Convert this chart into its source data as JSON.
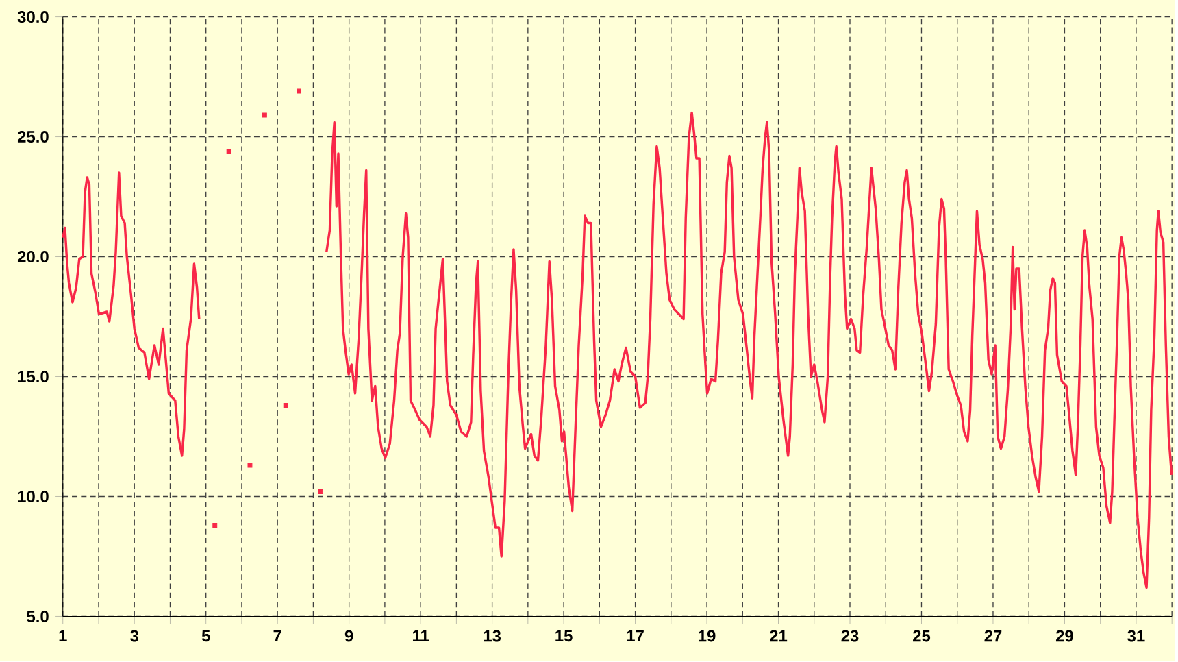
{
  "chart_data": {
    "type": "line",
    "xlim": [
      1,
      32
    ],
    "ylim": [
      5,
      30
    ],
    "xticks": [
      1,
      {
        "value": 2,
        "label": null
      },
      3,
      {
        "value": 4,
        "label": null
      },
      5,
      {
        "value": 6,
        "label": null
      },
      7,
      {
        "value": 8,
        "label": null
      },
      9,
      {
        "value": 10,
        "label": null
      },
      11,
      {
        "value": 12,
        "label": null
      },
      13,
      {
        "value": 14,
        "label": null
      },
      15,
      {
        "value": 16,
        "label": null
      },
      17,
      {
        "value": 18,
        "label": null
      },
      19,
      {
        "value": 20,
        "label": null
      },
      21,
      {
        "value": 22,
        "label": null
      },
      23,
      {
        "value": 24,
        "label": null
      },
      25,
      {
        "value": 26,
        "label": null
      },
      27,
      {
        "value": 28,
        "label": null
      },
      29,
      {
        "value": 30,
        "label": null
      },
      31,
      {
        "value": 32,
        "label": null
      }
    ],
    "yticks": [
      {
        "value": 5,
        "label": "5.0"
      },
      {
        "value": 10,
        "label": "10.0"
      },
      {
        "value": 15,
        "label": "15.0"
      },
      {
        "value": 20,
        "label": "20.0"
      },
      {
        "value": 25,
        "label": "25.0"
      },
      {
        "value": 30,
        "label": "30.0"
      }
    ],
    "grid": true,
    "series": [
      {
        "color": "#f82848",
        "x": [
          1.0,
          1.06,
          1.12,
          1.17,
          1.27,
          1.37,
          1.46,
          1.56,
          1.62,
          1.68,
          1.74,
          1.8,
          1.91,
          2.01,
          2.23,
          2.3,
          2.42,
          2.48,
          2.57,
          2.63,
          2.73,
          2.79,
          2.9,
          3.0,
          3.12,
          3.28,
          3.41,
          3.56,
          3.68,
          3.8,
          3.89,
          3.96,
          4.14,
          4.23,
          4.33,
          4.39,
          4.46,
          4.58,
          4.67,
          4.75,
          4.81,
          5.0,
          8.3,
          8.37,
          8.46,
          8.53,
          8.59,
          8.65,
          8.7,
          8.77,
          8.83,
          8.9,
          8.99,
          9.07,
          9.17,
          9.27,
          9.36,
          9.42,
          9.48,
          9.54,
          9.64,
          9.73,
          9.81,
          9.91,
          10.01,
          10.14,
          10.26,
          10.35,
          10.42,
          10.5,
          10.59,
          10.65,
          10.72,
          10.85,
          10.97,
          11.17,
          11.27,
          11.36,
          11.42,
          11.53,
          11.62,
          11.68,
          11.74,
          11.83,
          12.0,
          12.13,
          12.29,
          12.41,
          12.47,
          12.55,
          12.6,
          12.68,
          12.77,
          12.9,
          12.99,
          13.09,
          13.19,
          13.26,
          13.35,
          13.45,
          13.53,
          13.6,
          13.67,
          13.76,
          13.86,
          13.92,
          14.09,
          14.18,
          14.28,
          14.37,
          14.5,
          14.6,
          14.67,
          14.76,
          14.88,
          14.95,
          15.01,
          15.14,
          15.24,
          15.33,
          15.42,
          15.53,
          15.59,
          15.68,
          15.76,
          15.85,
          15.91,
          16.04,
          16.17,
          16.29,
          16.42,
          16.53,
          16.62,
          16.74,
          16.87,
          17.0,
          17.13,
          17.28,
          17.35,
          17.42,
          17.51,
          17.6,
          17.68,
          17.77,
          17.87,
          17.96,
          18.09,
          18.22,
          18.35,
          18.41,
          18.5,
          18.58,
          18.64,
          18.71,
          18.79,
          18.88,
          18.96,
          19.01,
          19.12,
          19.24,
          19.31,
          19.4,
          19.5,
          19.56,
          19.63,
          19.69,
          19.76,
          19.88,
          20.01,
          20.12,
          20.21,
          20.27,
          20.33,
          20.4,
          20.5,
          20.56,
          20.63,
          20.68,
          20.74,
          20.81,
          20.91,
          21.01,
          21.14,
          21.27,
          21.32,
          21.4,
          21.46,
          21.53,
          21.59,
          21.65,
          21.74,
          21.83,
          21.91,
          22.0,
          22.09,
          22.22,
          22.29,
          22.38,
          22.45,
          22.5,
          22.58,
          22.62,
          22.68,
          22.77,
          22.86,
          22.92,
          23.03,
          23.13,
          23.19,
          23.28,
          23.37,
          23.47,
          23.54,
          23.6,
          23.67,
          23.72,
          23.81,
          23.88,
          23.99,
          24.08,
          24.18,
          24.27,
          24.35,
          24.44,
          24.53,
          24.59,
          24.65,
          24.73,
          24.82,
          24.91,
          25.01,
          25.12,
          25.21,
          25.29,
          25.4,
          25.49,
          25.56,
          25.63,
          25.68,
          25.76,
          25.88,
          26.0,
          26.1,
          26.19,
          26.29,
          26.36,
          26.42,
          26.49,
          26.55,
          26.62,
          26.71,
          26.78,
          26.87,
          26.96,
          27.06,
          27.13,
          27.22,
          27.32,
          27.41,
          27.49,
          27.55,
          27.6,
          27.65,
          27.73,
          27.81,
          27.9,
          27.99,
          28.09,
          28.19,
          28.28,
          28.37,
          28.45,
          28.54,
          28.6,
          28.67,
          28.73,
          28.79,
          28.92,
          29.05,
          29.14,
          29.22,
          29.31,
          29.37,
          29.44,
          29.5,
          29.56,
          29.63,
          29.69,
          29.78,
          29.88,
          29.97,
          30.08,
          30.17,
          30.27,
          30.33,
          30.4,
          30.46,
          30.53,
          30.59,
          30.65,
          30.72,
          30.78,
          30.85,
          30.94,
          31.04,
          31.13,
          31.21,
          31.29,
          31.36,
          31.42,
          31.51,
          31.58,
          31.62,
          31.68,
          31.76,
          31.83,
          31.91,
          31.99
        ],
        "values": [
          20.8,
          21.2,
          19.7,
          18.9,
          18.1,
          18.7,
          19.9,
          20.0,
          22.7,
          23.3,
          23.0,
          19.3,
          18.5,
          17.6,
          17.7,
          17.3,
          18.8,
          20.2,
          23.5,
          21.7,
          21.4,
          20.0,
          18.5,
          17.0,
          16.2,
          16.0,
          14.9,
          16.3,
          15.5,
          17.0,
          15.5,
          14.3,
          14.0,
          12.5,
          11.7,
          12.8,
          16.1,
          17.4,
          19.7,
          18.7,
          17.4,
          null,
          null,
          20.2,
          21.1,
          24.3,
          25.6,
          22.1,
          24.3,
          20.1,
          17.0,
          16.1,
          15.1,
          15.5,
          14.3,
          16.6,
          19.6,
          21.8,
          23.6,
          17.0,
          14.0,
          14.6,
          12.9,
          12.0,
          11.6,
          12.2,
          14.0,
          16.1,
          16.8,
          20.0,
          21.8,
          20.8,
          14.0,
          13.6,
          13.2,
          12.9,
          12.5,
          13.8,
          17.0,
          18.6,
          19.9,
          17.4,
          14.8,
          13.8,
          13.4,
          12.7,
          12.5,
          13.1,
          15.9,
          18.9,
          19.8,
          14.4,
          11.9,
          10.8,
          9.8,
          8.7,
          8.7,
          7.5,
          9.8,
          15.0,
          18.2,
          20.3,
          18.6,
          14.6,
          12.9,
          12.0,
          12.6,
          11.7,
          11.5,
          13.2,
          16.3,
          19.8,
          18.2,
          14.6,
          13.6,
          12.3,
          12.7,
          10.4,
          9.4,
          12.9,
          16.3,
          19.3,
          21.7,
          21.4,
          21.4,
          16.5,
          14.0,
          12.9,
          13.4,
          14.0,
          15.3,
          14.8,
          15.5,
          16.2,
          15.2,
          15.0,
          13.7,
          13.9,
          15.0,
          17.4,
          22.2,
          24.6,
          23.7,
          21.6,
          19.3,
          18.2,
          17.8,
          17.6,
          17.4,
          21.6,
          25.0,
          26.0,
          25.2,
          24.1,
          24.1,
          17.6,
          15.5,
          14.3,
          14.9,
          14.8,
          16.5,
          19.3,
          20.2,
          23.1,
          24.2,
          23.7,
          20.0,
          18.2,
          17.6,
          16.1,
          14.8,
          14.1,
          16.7,
          18.8,
          21.8,
          23.7,
          25.0,
          25.6,
          24.4,
          19.8,
          17.6,
          15.0,
          13.2,
          11.7,
          12.5,
          15.5,
          19.3,
          21.6,
          23.7,
          22.7,
          21.9,
          17.6,
          15.0,
          15.5,
          14.8,
          13.6,
          13.1,
          15.0,
          19.3,
          21.6,
          24.0,
          24.6,
          23.5,
          22.4,
          18.4,
          17.0,
          17.4,
          17.0,
          16.1,
          16.0,
          18.4,
          20.4,
          22.2,
          23.7,
          22.7,
          22.0,
          19.9,
          17.8,
          17.0,
          16.3,
          16.1,
          15.3,
          18.6,
          21.4,
          23.1,
          23.6,
          22.4,
          21.6,
          19.3,
          17.6,
          16.8,
          15.5,
          14.4,
          15.2,
          17.2,
          21.2,
          22.4,
          22.0,
          19.9,
          15.3,
          14.8,
          14.2,
          13.8,
          12.7,
          12.3,
          13.6,
          16.7,
          19.5,
          21.9,
          20.5,
          19.9,
          18.9,
          15.7,
          15.1,
          16.3,
          12.5,
          12.0,
          12.5,
          14.4,
          17.0,
          20.4,
          17.8,
          19.5,
          19.5,
          17.0,
          14.6,
          12.9,
          11.7,
          10.8,
          10.2,
          12.5,
          16.1,
          17.0,
          18.6,
          19.1,
          18.9,
          15.9,
          14.8,
          14.6,
          13.2,
          11.9,
          10.9,
          12.9,
          16.3,
          20.0,
          21.1,
          20.4,
          18.8,
          17.4,
          12.9,
          11.7,
          11.2,
          9.6,
          8.9,
          10.2,
          13.6,
          16.3,
          20.0,
          20.8,
          20.3,
          19.3,
          18.2,
          14.6,
          11.7,
          9.1,
          7.7,
          6.8,
          6.2,
          9.1,
          13.6,
          16.7,
          21.1,
          21.9,
          21.0,
          20.6,
          16.3,
          12.5,
          10.9
        ]
      },
      {
        "type": "scatter",
        "color": "#f82848",
        "marker": "square",
        "x": [
          5.25,
          5.64,
          6.23,
          6.64,
          7.23,
          7.6,
          8.2
        ],
        "values": [
          8.8,
          24.4,
          11.3,
          25.9,
          13.8,
          26.9,
          10.2
        ]
      }
    ]
  }
}
